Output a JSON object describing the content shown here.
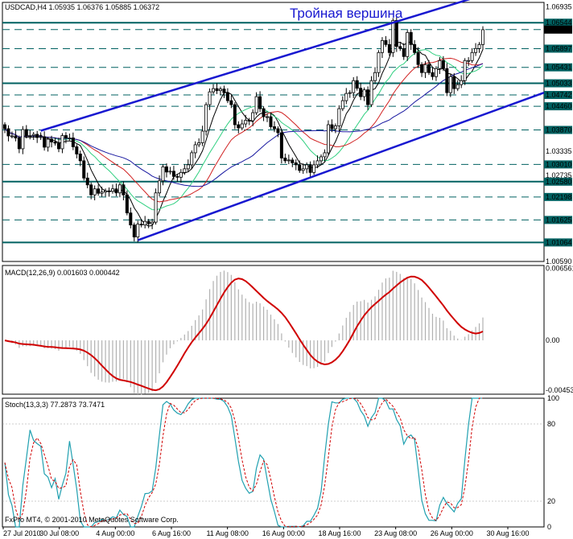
{
  "chart_data": [
    {
      "type": "candlestick",
      "header": "USDCAD,H4  1.05935 1.06376 1.05885 1.06372",
      "title": "Тройная вершина",
      "price_ticks": [
        "1.06935",
        "1.06544",
        "1.06372",
        "1.05897",
        "1.05431",
        "1.05033",
        "1.04742",
        "1.04460",
        "1.03870",
        "1.03335",
        "1.03010",
        "1.02735",
        "1.02580",
        "1.02198",
        "1.01625",
        "1.01064",
        "1.00590"
      ],
      "highlighted_levels": [
        "1.06544",
        "1.06372",
        "1.05897",
        "1.05431",
        "1.05033",
        "1.04742",
        "1.04460",
        "1.03870",
        "1.03010",
        "1.02580",
        "1.02198",
        "1.01625",
        "1.01064"
      ],
      "ylim": [
        1.0059,
        1.0705
      ],
      "close": [
        1.039,
        1.0372,
        1.0372,
        1.0367,
        1.034,
        1.0388,
        1.0372,
        1.0373,
        1.0376,
        1.0368,
        1.037,
        1.0344,
        1.0364,
        1.0357,
        1.0354,
        1.034,
        1.0373,
        1.0367,
        1.0367,
        1.0345,
        1.0327,
        1.031,
        1.0267,
        1.025,
        1.0225,
        1.024,
        1.0229,
        1.0232,
        1.0235,
        1.0234,
        1.024,
        1.023,
        1.025,
        1.0225,
        1.018,
        1.015,
        1.012,
        1.0152,
        1.015,
        1.0159,
        1.0153,
        1.0157,
        1.023,
        1.026,
        1.0295,
        1.0282,
        1.0284,
        1.0271,
        1.0269,
        1.0281,
        1.029,
        1.03,
        1.033,
        1.035,
        1.0355,
        1.0384,
        1.045,
        1.0482,
        1.049,
        1.0485,
        1.0489,
        1.048,
        1.046,
        1.045,
        1.04,
        1.0392,
        1.0402,
        1.0411,
        1.041,
        1.043,
        1.047,
        1.044,
        1.042,
        1.042,
        1.0395,
        1.039,
        1.038,
        1.0317,
        1.031,
        1.0312,
        1.0305,
        1.03,
        1.0286,
        1.029,
        1.03,
        1.0281,
        1.03,
        1.031,
        1.032,
        1.033,
        1.04,
        1.039,
        1.0397,
        1.044,
        1.046,
        1.0478,
        1.048,
        1.051,
        1.0491,
        1.047,
        1.0487,
        1.045,
        1.051,
        1.053,
        1.058,
        1.061,
        1.06,
        1.058,
        1.066,
        1.0595,
        1.059,
        1.057,
        1.063,
        1.06,
        1.058,
        1.055,
        1.053,
        1.055,
        1.053,
        1.052,
        1.054,
        1.056,
        1.054,
        1.048,
        1.052,
        1.049,
        1.05,
        1.051,
        1.056,
        1.056,
        1.058,
        1.059,
        1.06,
        1.0637
      ]
    },
    {
      "type": "line",
      "header": "MACD(12,26,9) 0.001603 0.000442",
      "y_ticks": [
        "0.006561",
        "0.00",
        "-0.004532"
      ],
      "ylim": [
        -0.00489,
        0.0068
      ]
    },
    {
      "type": "line",
      "header": "Stoch(13,3,3) 77.2873 73.7471",
      "y_ticks": [
        "100",
        "80",
        "20",
        "0"
      ],
      "ylim": [
        0,
        100
      ]
    }
  ],
  "x_ticks": [
    "27 Jul 2010",
    "30 Jul 08:00",
    "4 Aug 00:00",
    "6 Aug 16:00",
    "11 Aug 08:00",
    "16 Aug 00:00",
    "18 Aug 16:00",
    "23 Aug 08:00",
    "26 Aug 00:00",
    "30 Aug 16:00"
  ],
  "copyright": "FxPro MT4, © 2001-2010 MetaQuotes Software Corp.",
  "colors": {
    "bull": "#000000",
    "bear": "#000000",
    "channel": "#1818d0",
    "level": "#006060",
    "macd": "#d00000",
    "macd_hist": "#b0b0b0",
    "stoch_main": "#20a0b0",
    "stoch_signal": "#d00000",
    "ma_fast": "#000000",
    "ma_mid": "#d02020",
    "ma_slow": "#1818a0",
    "ma_green": "#30d080"
  }
}
